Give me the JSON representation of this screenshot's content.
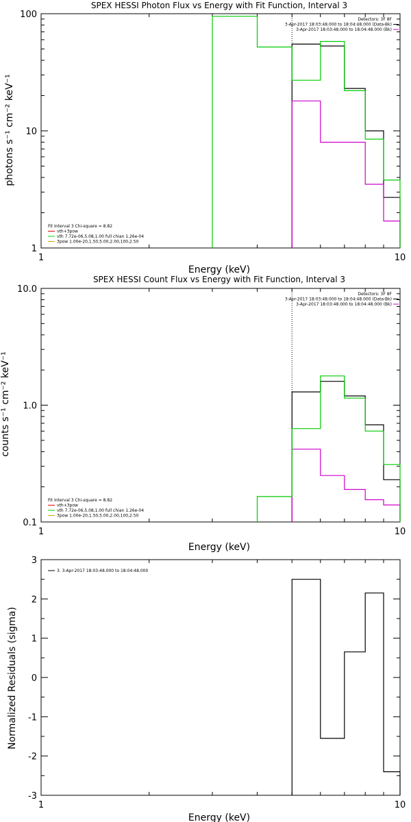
{
  "chart_data": [
    {
      "type": "line",
      "title": "SPEX HESSI Photon Flux vs Energy with Fit Function, Interval 3",
      "xlabel": "Energy (keV)",
      "ylabel": "photons s⁻¹ cm⁻² keV⁻¹",
      "xscale": "log",
      "yscale": "log",
      "xlim": [
        1,
        10
      ],
      "ylim": [
        1,
        100
      ],
      "xticks": [
        {
          "value": 1,
          "label": "1"
        },
        {
          "value": 10,
          "label": "10"
        }
      ],
      "yticks": [
        {
          "value": 1,
          "label": "1"
        },
        {
          "value": 10,
          "label": "10"
        },
        {
          "value": 100,
          "label": "100"
        }
      ],
      "vline": 5.0,
      "legend_right": {
        "placement": "top-right",
        "header": "Detectors: 3F 8F",
        "entries": [
          {
            "text": "3-Apr-2017 18:03:48.000 to 18:04:48.000 (Data-Bk)",
            "color": "#000000"
          },
          {
            "text": "3-Apr-2017 18:03:48.000 to 18:04:48.000 (Bk)",
            "color": "#cc00cc"
          }
        ]
      },
      "legend_left": {
        "placement": "bottom-left",
        "header": "Fit Interval 3   Chi-square = 8.82",
        "entries": [
          {
            "text": "vth+3pow",
            "color": "#e00000"
          },
          {
            "text": "vth 7.72e-06,5.08,1.00  full chian 1.26e-04",
            "color": "#00cc00"
          },
          {
            "text": "3pow 1.00e-20,1.50,5.00,2.00,100,2.50",
            "color": "#d4a000"
          }
        ]
      },
      "series": [
        {
          "color": "#000000",
          "bins": [
            [
              5.0,
              6.0,
              55
            ],
            [
              6.0,
              7.0,
              53
            ],
            [
              7.0,
              8.0,
              23
            ],
            [
              8.0,
              9.0,
              10
            ],
            [
              9.0,
              10.0,
              2.7
            ]
          ]
        },
        {
          "color": "#cc00cc",
          "bins": [
            [
              5.0,
              6.0,
              18
            ],
            [
              6.0,
              7.0,
              8.0
            ],
            [
              7.0,
              8.0,
              8.0
            ],
            [
              8.0,
              9.0,
              3.5
            ],
            [
              9.0,
              10.0,
              1.7
            ]
          ]
        },
        {
          "color": "#00cc00",
          "bins": [
            [
              3.0,
              4.0,
              95
            ],
            [
              4.0,
              5.0,
              52
            ],
            [
              5.0,
              6.0,
              27
            ],
            [
              6.0,
              7.0,
              58
            ],
            [
              7.0,
              8.0,
              22
            ],
            [
              8.0,
              9.0,
              8.5
            ],
            [
              9.0,
              10.0,
              3.8
            ]
          ]
        }
      ]
    },
    {
      "type": "line",
      "title": "SPEX HESSI Count Flux vs Energy with Fit Function, Interval 3",
      "xlabel": "Energy (keV)",
      "ylabel": "counts s⁻¹ cm⁻² keV⁻¹",
      "xscale": "log",
      "yscale": "log",
      "xlim": [
        1,
        10
      ],
      "ylim": [
        0.1,
        10
      ],
      "xticks": [
        {
          "value": 1,
          "label": "1"
        },
        {
          "value": 10,
          "label": "10"
        }
      ],
      "yticks": [
        {
          "value": 0.1,
          "label": "0.1"
        },
        {
          "value": 1,
          "label": "1.0"
        },
        {
          "value": 10,
          "label": "10.0"
        }
      ],
      "vline": 5.0,
      "legend_right": {
        "placement": "top-right",
        "header": "Detectors: 3F 8F",
        "entries": [
          {
            "text": "3-Apr-2017 18:03:48.000 to 18:04:48.000 (Data-Bk)",
            "color": "#000000"
          },
          {
            "text": "3-Apr-2017 18:03:48.000 to 18:04:48.000 (Bk)",
            "color": "#cc00cc"
          }
        ]
      },
      "legend_left": {
        "placement": "bottom-left",
        "header": "Fit Interval 3   Chi-square = 8.82",
        "entries": [
          {
            "text": "vth+3pow",
            "color": "#e00000"
          },
          {
            "text": "vth 7.72e-06,5.08,1.00  full chian 1.26e-04",
            "color": "#00cc00"
          },
          {
            "text": "3pow 1.00e-20,1.50,5.00,2.00,100,2.50",
            "color": "#d4a000"
          }
        ]
      },
      "series": [
        {
          "color": "#000000",
          "bins": [
            [
              5.0,
              6.0,
              1.3
            ],
            [
              6.0,
              7.0,
              1.6
            ],
            [
              7.0,
              8.0,
              1.2
            ],
            [
              8.0,
              9.0,
              0.68
            ],
            [
              9.0,
              10.0,
              0.23
            ]
          ]
        },
        {
          "color": "#cc00cc",
          "bins": [
            [
              5.0,
              6.0,
              0.42
            ],
            [
              6.0,
              7.0,
              0.25
            ],
            [
              7.0,
              8.0,
              0.19
            ],
            [
              8.0,
              9.0,
              0.155
            ],
            [
              9.0,
              10.0,
              0.14
            ]
          ]
        },
        {
          "color": "#00cc00",
          "bins": [
            [
              4.0,
              5.0,
              0.165
            ],
            [
              5.0,
              6.0,
              0.63
            ],
            [
              6.0,
              7.0,
              1.78
            ],
            [
              7.0,
              8.0,
              1.15
            ],
            [
              8.0,
              9.0,
              0.6
            ],
            [
              9.0,
              10.0,
              0.31
            ]
          ]
        }
      ]
    },
    {
      "type": "line",
      "title": "",
      "xlabel": "Energy (keV)",
      "ylabel": "Normalized Residuals (sigma)",
      "xscale": "log",
      "yscale": "linear",
      "xlim": [
        1,
        10
      ],
      "ylim": [
        -3,
        3
      ],
      "xticks": [
        {
          "value": 1,
          "label": "1"
        },
        {
          "value": 10,
          "label": "10"
        }
      ],
      "yticks": [
        {
          "value": -3,
          "label": "-3"
        },
        {
          "value": -2,
          "label": "-2"
        },
        {
          "value": -1,
          "label": "-1"
        },
        {
          "value": 0,
          "label": "0"
        },
        {
          "value": 1,
          "label": "1"
        },
        {
          "value": 2,
          "label": "2"
        },
        {
          "value": 3,
          "label": "3"
        }
      ],
      "legend_left": {
        "placement": "top-left",
        "header": "",
        "entries": [
          {
            "text": "3. 3-Apr-2017 18:03:48.000 to 18:04:48.000",
            "color": "#000000"
          }
        ]
      },
      "series": [
        {
          "color": "#000000",
          "bins": [
            [
              5.0,
              6.0,
              2.5
            ],
            [
              6.0,
              7.0,
              -1.55
            ],
            [
              7.0,
              8.0,
              0.65
            ],
            [
              8.0,
              9.0,
              2.15
            ],
            [
              9.0,
              10.0,
              -2.4
            ]
          ]
        }
      ]
    }
  ]
}
